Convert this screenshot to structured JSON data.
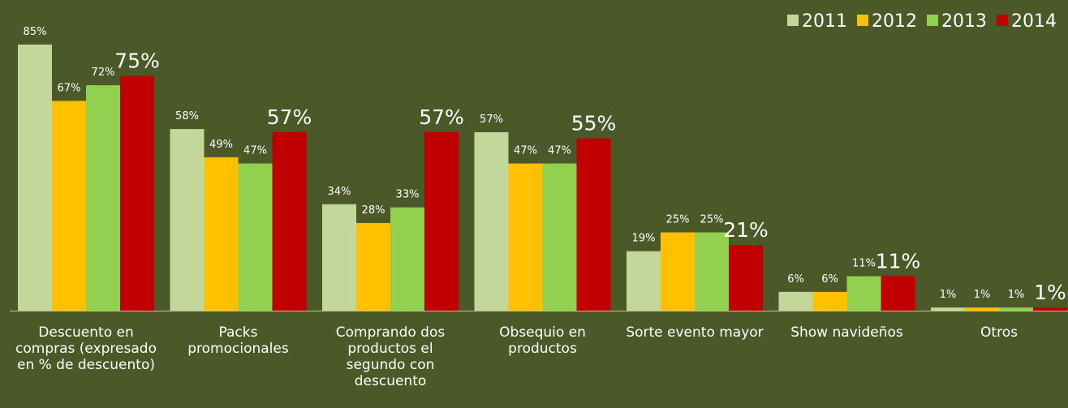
{
  "chart_data": {
    "type": "bar",
    "categories": [
      "Descuento en compras (expresado en % de descuento)",
      "Packs promocionales",
      "Comprando dos productos el segundo con descuento",
      "Obsequio en productos",
      "Sorte evento mayor",
      "Show navideños",
      "Otros"
    ],
    "series": [
      {
        "name": "2011",
        "color": "#c4d79b",
        "values": [
          85,
          58,
          34,
          57,
          19,
          6,
          1
        ],
        "value_labels": [
          "85%",
          "58%",
          "34%",
          "57%",
          "19%",
          "6%",
          "1%"
        ]
      },
      {
        "name": "2012",
        "color": "#ffc000",
        "values": [
          67,
          49,
          28,
          47,
          25,
          6,
          1
        ],
        "value_labels": [
          "67%",
          "49%",
          "28%",
          "47%",
          "25%",
          "6%",
          "1%"
        ]
      },
      {
        "name": "2013",
        "color": "#92d050",
        "values": [
          72,
          47,
          33,
          47,
          25,
          11,
          1
        ],
        "value_labels": [
          "72%",
          "47%",
          "33%",
          "47%",
          "25%",
          "11%",
          "1%"
        ]
      },
      {
        "name": "2014",
        "color": "#c00000",
        "values": [
          75,
          57,
          57,
          55,
          21,
          11,
          1
        ],
        "value_labels": [
          "75%",
          "57%",
          "57%",
          "55%",
          "21%",
          "11%",
          "1%"
        ]
      }
    ],
    "legend": "top-right"
  }
}
